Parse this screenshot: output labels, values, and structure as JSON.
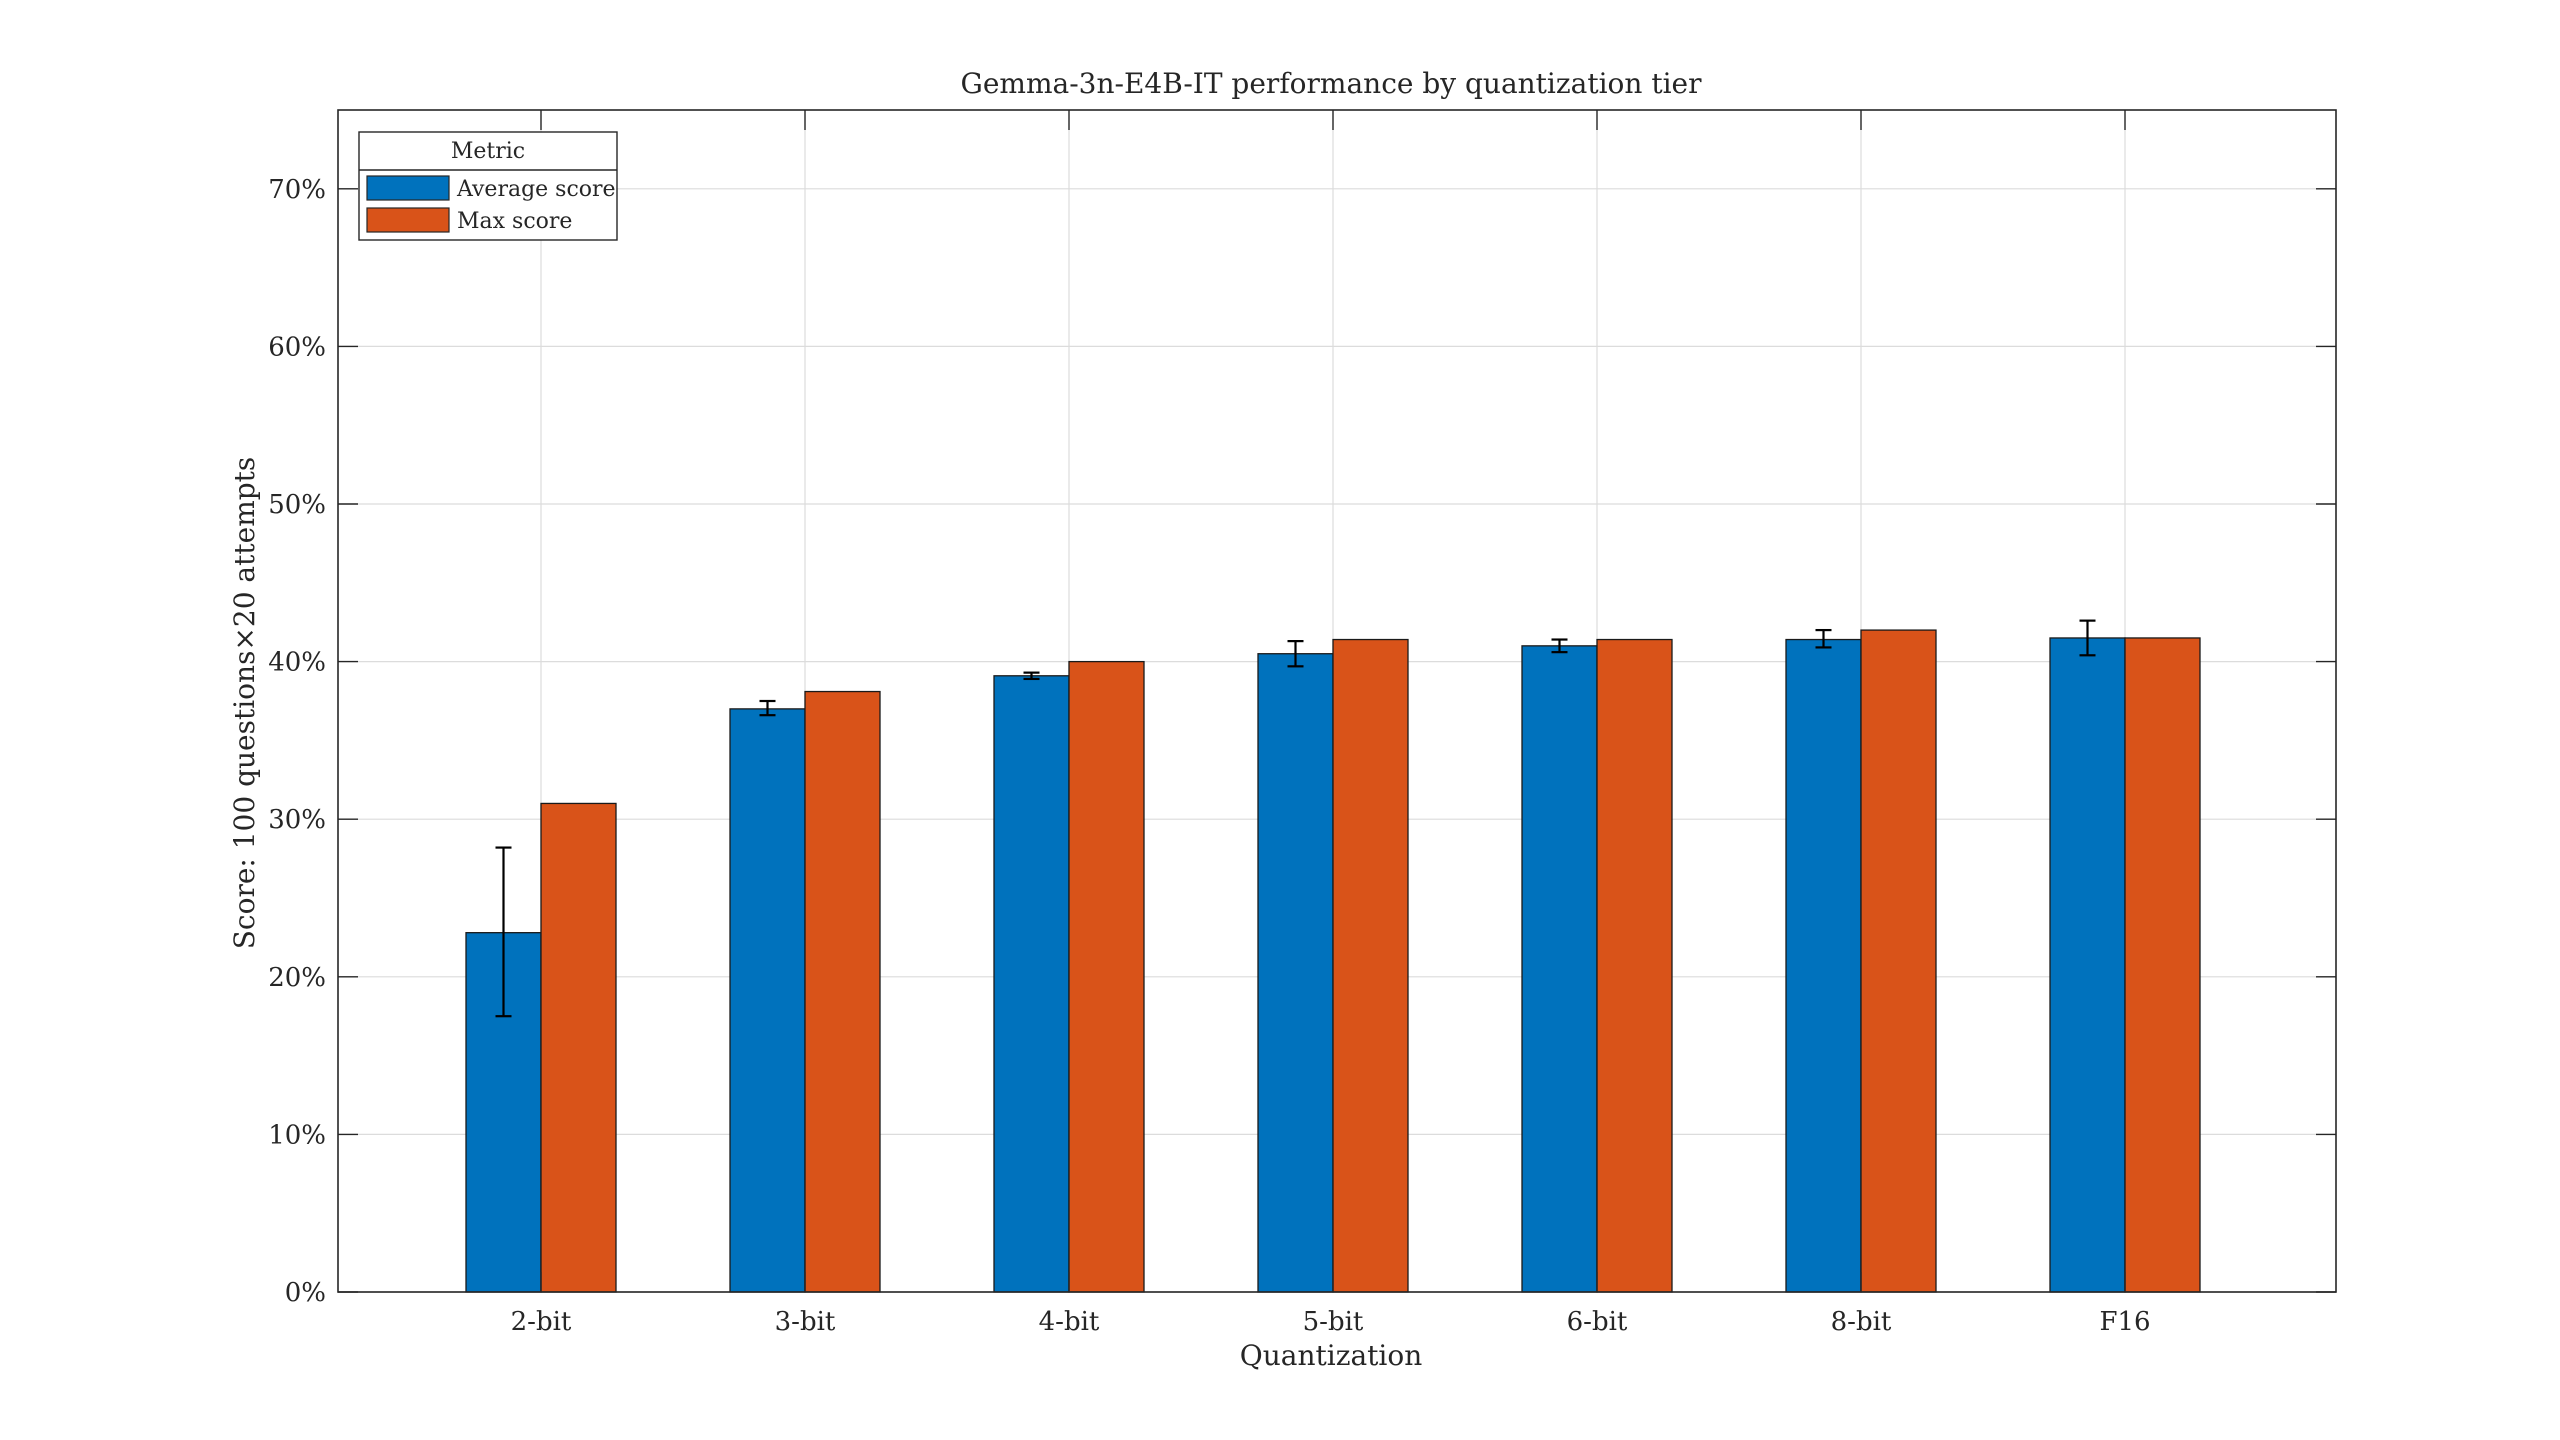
{
  "chart_data": {
    "type": "bar",
    "title": "Gemma-3n-E4B-IT performance by quantization tier",
    "xlabel": "Quantization",
    "ylabel": "Score: 100 questions×20 attempts",
    "categories": [
      "2-bit",
      "3-bit",
      "4-bit",
      "5-bit",
      "6-bit",
      "8-bit",
      "F16"
    ],
    "series": [
      {
        "name": "Average score",
        "color": "#0072BD",
        "values": [
          22.8,
          37.0,
          39.1,
          40.5,
          41.0,
          41.4,
          41.5
        ],
        "error_low": [
          17.5,
          36.6,
          38.9,
          39.7,
          40.6,
          40.9,
          40.4
        ],
        "error_high": [
          28.2,
          37.5,
          39.3,
          41.3,
          41.4,
          42.0,
          42.6
        ]
      },
      {
        "name": "Max score",
        "color": "#D95319",
        "values": [
          31.0,
          38.1,
          40.0,
          41.4,
          41.4,
          42.0,
          41.5
        ]
      }
    ],
    "ylim": [
      0,
      75
    ],
    "yticks": [
      0,
      10,
      20,
      30,
      40,
      50,
      60,
      70
    ],
    "ytick_labels": [
      "0%",
      "10%",
      "20%",
      "30%",
      "40%",
      "50%",
      "60%",
      "70%"
    ],
    "grid": true,
    "legend": {
      "title": "Metric",
      "position": "top-left"
    }
  }
}
